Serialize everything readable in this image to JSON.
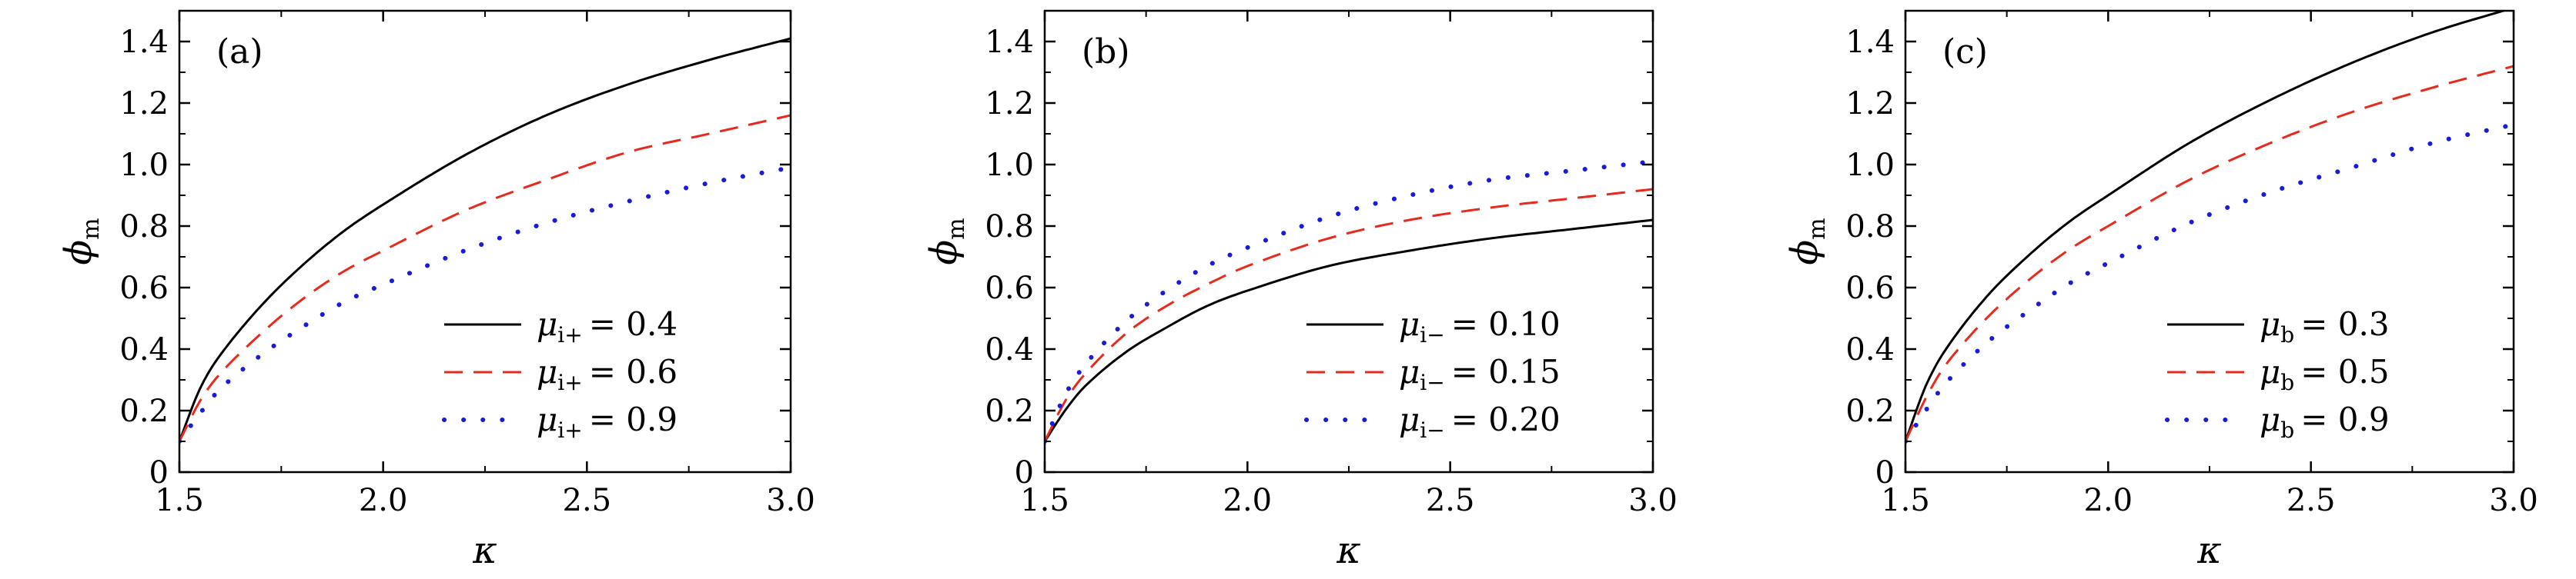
{
  "chart_data": [
    {
      "type": "line",
      "panel_label": "(a)",
      "xlabel": "κ",
      "ylabel": {
        "symbol": "ϕ",
        "subscript": "m"
      },
      "xlim": [
        1.5,
        3.0
      ],
      "ylim": [
        0,
        1.5
      ],
      "xticks": [
        "1.5",
        "2.0",
        "2.5",
        "3.0"
      ],
      "yticks": [
        "0",
        "0.2",
        "0.4",
        "0.6",
        "0.8",
        "1.0",
        "1.2",
        "1.4"
      ],
      "legend_position": "bottom-right",
      "x": [
        1.5,
        1.55,
        1.6,
        1.7,
        1.8,
        1.9,
        2.0,
        2.2,
        2.4,
        2.6,
        2.8,
        3.0
      ],
      "series": [
        {
          "symbol": "μ",
          "subscript": "i+",
          "value_text": "= 0.4",
          "color": "#000000",
          "style": "solid",
          "values": [
            0.1,
            0.27,
            0.38,
            0.54,
            0.67,
            0.78,
            0.87,
            1.03,
            1.16,
            1.26,
            1.34,
            1.41
          ]
        },
        {
          "symbol": "μ",
          "subscript": "i+",
          "value_text": "= 0.6",
          "color": "#e8291c",
          "style": "dashed",
          "values": [
            0.1,
            0.23,
            0.32,
            0.45,
            0.56,
            0.65,
            0.72,
            0.85,
            0.95,
            1.04,
            1.1,
            1.16
          ]
        },
        {
          "symbol": "μ",
          "subscript": "i+",
          "value_text": "= 0.9",
          "color": "#1a1adb",
          "style": "dotted",
          "values": [
            0.1,
            0.19,
            0.27,
            0.38,
            0.47,
            0.55,
            0.61,
            0.72,
            0.81,
            0.88,
            0.94,
            0.99
          ]
        }
      ]
    },
    {
      "type": "line",
      "panel_label": "(b)",
      "xlabel": "κ",
      "ylabel": {
        "symbol": "ϕ",
        "subscript": "m"
      },
      "xlim": [
        1.5,
        3.0
      ],
      "ylim": [
        0,
        1.5
      ],
      "xticks": [
        "1.5",
        "2.0",
        "2.5",
        "3.0"
      ],
      "yticks": [
        "0",
        "0.2",
        "0.4",
        "0.6",
        "0.8",
        "1.0",
        "1.2",
        "1.4"
      ],
      "legend_position": "bottom-right",
      "x": [
        1.5,
        1.55,
        1.6,
        1.7,
        1.8,
        1.9,
        2.0,
        2.2,
        2.4,
        2.6,
        2.8,
        3.0
      ],
      "series": [
        {
          "symbol": "μ",
          "subscript": "i−",
          "value_text": "= 0.10",
          "color": "#000000",
          "style": "solid",
          "values": [
            0.1,
            0.2,
            0.28,
            0.39,
            0.47,
            0.54,
            0.59,
            0.67,
            0.72,
            0.76,
            0.79,
            0.82
          ]
        },
        {
          "symbol": "μ",
          "subscript": "i−",
          "value_text": "= 0.15",
          "color": "#e8291c",
          "style": "dashed",
          "values": [
            0.1,
            0.23,
            0.32,
            0.45,
            0.54,
            0.61,
            0.67,
            0.76,
            0.82,
            0.86,
            0.89,
            0.92
          ]
        },
        {
          "symbol": "μ",
          "subscript": "i−",
          "value_text": "= 0.20",
          "color": "#1a1adb",
          "style": "dotted",
          "values": [
            0.1,
            0.25,
            0.35,
            0.49,
            0.59,
            0.67,
            0.73,
            0.83,
            0.9,
            0.95,
            0.98,
            1.01
          ]
        }
      ]
    },
    {
      "type": "line",
      "panel_label": "(c)",
      "xlabel": "κ",
      "ylabel": {
        "symbol": "ϕ",
        "subscript": "m"
      },
      "xlim": [
        1.5,
        3.0
      ],
      "ylim": [
        0,
        1.5
      ],
      "xticks": [
        "1.5",
        "2.0",
        "2.5",
        "3.0"
      ],
      "yticks": [
        "0",
        "0.2",
        "0.4",
        "0.6",
        "0.8",
        "1.0",
        "1.2",
        "1.4"
      ],
      "legend_position": "bottom-right",
      "x": [
        1.5,
        1.55,
        1.6,
        1.7,
        1.8,
        1.9,
        2.0,
        2.2,
        2.4,
        2.6,
        2.8,
        3.0
      ],
      "series": [
        {
          "symbol": "μ",
          "subscript": "b",
          "value_text": "= 0.3",
          "color": "#000000",
          "style": "solid",
          "values": [
            0.1,
            0.28,
            0.4,
            0.57,
            0.7,
            0.81,
            0.9,
            1.07,
            1.21,
            1.33,
            1.43,
            1.51
          ]
        },
        {
          "symbol": "μ",
          "subscript": "b",
          "value_text": "= 0.5",
          "color": "#e8291c",
          "style": "dashed",
          "values": [
            0.1,
            0.24,
            0.35,
            0.5,
            0.62,
            0.72,
            0.8,
            0.95,
            1.07,
            1.17,
            1.25,
            1.32
          ]
        },
        {
          "symbol": "μ",
          "subscript": "b",
          "value_text": "= 0.9",
          "color": "#1a1adb",
          "style": "dotted",
          "values": [
            0.1,
            0.2,
            0.29,
            0.42,
            0.52,
            0.61,
            0.68,
            0.81,
            0.91,
            0.99,
            1.07,
            1.13
          ]
        }
      ]
    }
  ]
}
